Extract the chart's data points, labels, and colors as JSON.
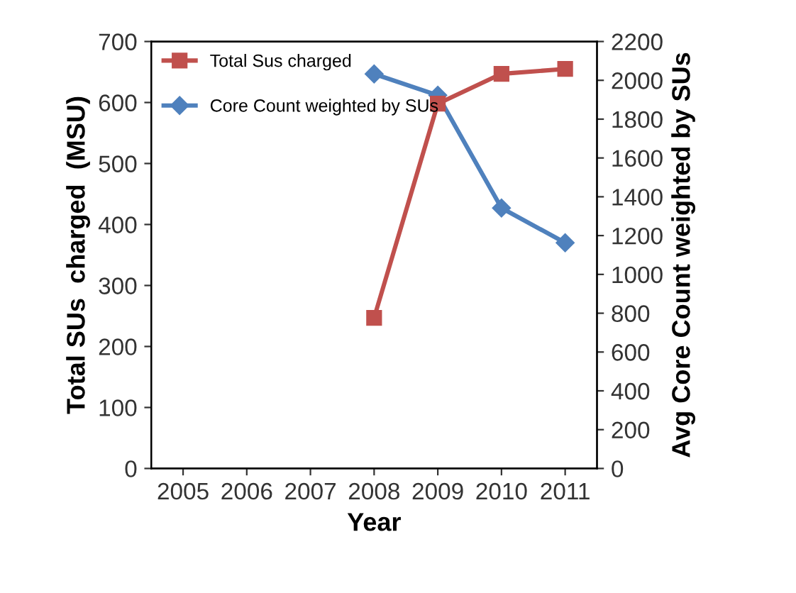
{
  "chart_data": {
    "type": "line",
    "xlabel": "Year",
    "ylabel": "Total SUs  charged  (MSU)",
    "y2label": "Avg Core Count weighted by SUs",
    "categories": [
      "2005",
      "2006",
      "2007",
      "2008",
      "2009",
      "2010",
      "2011"
    ],
    "series": [
      {
        "name": "Total Sus charged",
        "color": "#c0504d",
        "marker": "square",
        "values": [
          null,
          null,
          null,
          247,
          598,
          647,
          655
        ]
      },
      {
        "name": "Core Count weighted by SUs",
        "color": "#4f81bd",
        "marker": "diamond",
        "axis": "y2",
        "values": [
          null,
          null,
          null,
          2033,
          1923,
          1342,
          1163
        ]
      }
    ],
    "ylim": [
      0,
      700
    ],
    "yticks": [
      0,
      100,
      200,
      300,
      400,
      500,
      600,
      700
    ],
    "y2lim": [
      0,
      2200
    ],
    "y2ticks": [
      0,
      200,
      400,
      600,
      800,
      1000,
      1200,
      1400,
      1600,
      1800,
      2000,
      2200
    ],
    "grid": false,
    "legend": "top left",
    "line_style": "solid"
  }
}
